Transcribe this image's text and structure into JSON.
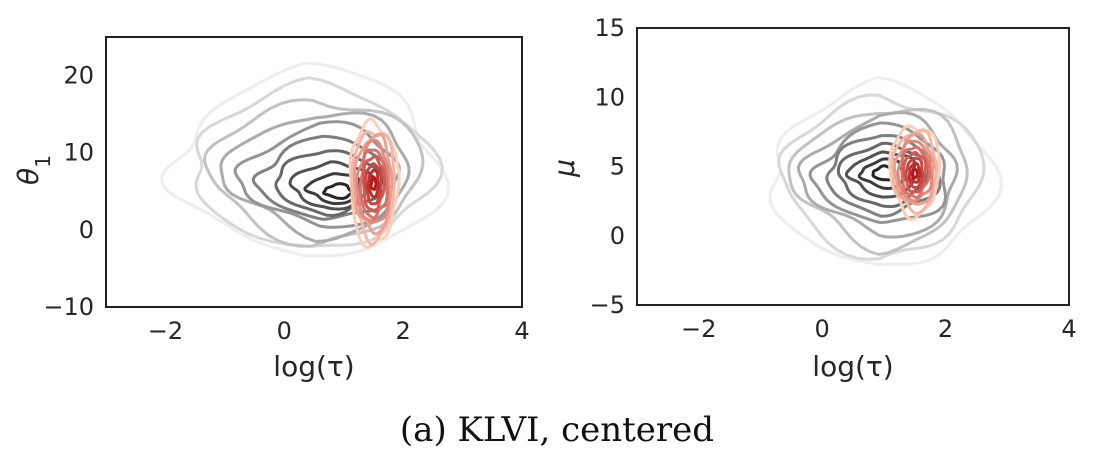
{
  "caption": "(a) KLVI, centered",
  "colors": {
    "reference": "#3a3a3a",
    "approx": "#c0392b",
    "frame": "#222222"
  },
  "chart_data": [
    {
      "type": "contour",
      "xlabel": "log(τ)",
      "ylabel": "θ",
      "ylabel_sub": "1",
      "xlim": [
        -3,
        4
      ],
      "ylim": [
        -10,
        25
      ],
      "xticks": [
        -2,
        0,
        2,
        4
      ],
      "yticks": [
        -10,
        0,
        10,
        20
      ],
      "xtick_labels": [
        "−2",
        "0",
        "2",
        "4"
      ],
      "ytick_labels": [
        "−10",
        "0",
        "10",
        "20"
      ],
      "grid": false,
      "series": [
        {
          "role": "reference",
          "color_scale": "greys",
          "center": [
            0.9,
            5
          ],
          "levels": 10,
          "outer_extent": {
            "x": [
              -1.9,
              2.6
            ],
            "y": [
              -4,
              21
            ]
          }
        },
        {
          "role": "approx",
          "color_scale": "reds",
          "center": [
            1.5,
            6
          ],
          "levels": 9,
          "outer_extent": {
            "x": [
              1.1,
              1.9
            ],
            "y": [
              -2,
              14
            ]
          }
        }
      ]
    },
    {
      "type": "contour",
      "xlabel": "log(τ)",
      "ylabel": "μ",
      "ylabel_sub": "",
      "xlim": [
        -3,
        4
      ],
      "ylim": [
        -5,
        15
      ],
      "xticks": [
        -2,
        0,
        2,
        4
      ],
      "yticks": [
        -5,
        0,
        5,
        10,
        15
      ],
      "xtick_labels": [
        "−2",
        "0",
        "2",
        "4"
      ],
      "ytick_labels": [
        "−5",
        "0",
        "5",
        "10",
        "15"
      ],
      "grid": false,
      "series": [
        {
          "role": "reference",
          "color_scale": "greys",
          "center": [
            1.0,
            4.5
          ],
          "levels": 10,
          "outer_extent": {
            "x": [
              -0.9,
              2.7
            ],
            "y": [
              -2.5,
              11
            ]
          }
        },
        {
          "role": "approx",
          "color_scale": "reds",
          "center": [
            1.5,
            4.5
          ],
          "levels": 9,
          "outer_extent": {
            "x": [
              1.1,
              1.9
            ],
            "y": [
              1.5,
              8
            ]
          }
        }
      ]
    }
  ]
}
